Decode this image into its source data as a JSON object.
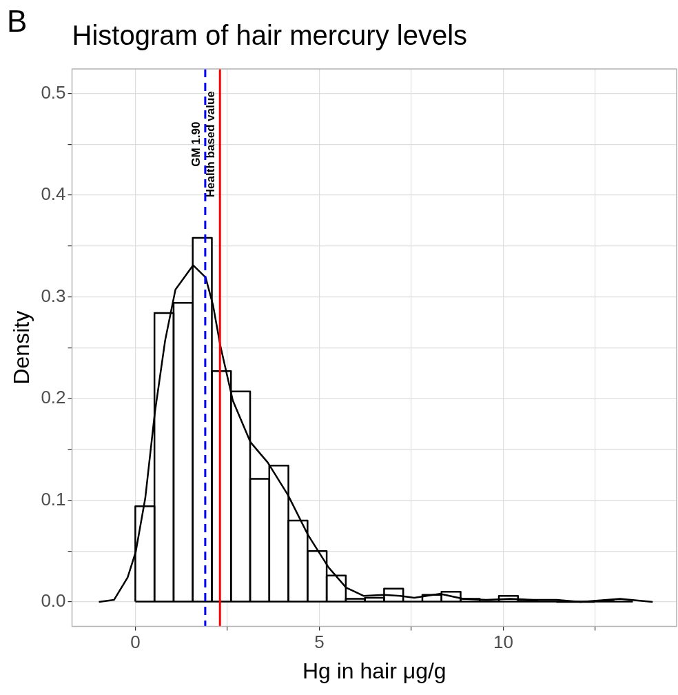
{
  "chart_data": {
    "type": "histogram",
    "title": "Histogram of hair mercury levels",
    "xlabel": "Hg in hair μg/g",
    "ylabel": "Density",
    "annotations": [
      "B"
    ],
    "bins": [
      0,
      0.52,
      1.04,
      1.56,
      2.08,
      2.6,
      3.12,
      3.64,
      4.16,
      4.68,
      5.2,
      5.72,
      6.24,
      6.76,
      7.28,
      7.8,
      8.32,
      8.84,
      9.36,
      9.88,
      10.4,
      10.92,
      11.44,
      11.96,
      12.48,
      13.0,
      13.52
    ],
    "color": "#ffffff",
    "values": [
      0.094,
      0.284,
      0.294,
      0.358,
      0.227,
      0.207,
      0.121,
      0.134,
      0.08,
      0.05,
      0.026,
      0.003,
      0.004,
      0.013,
      null,
      0.007,
      0.01,
      0.003,
      null,
      0.006,
      0.001,
      null,
      0,
      0,
      0.001,
      null
    ],
    "series": [
      {
        "type": "line",
        "color": "#000000",
        "x": [
          -0.99,
          -0.58,
          -0.21,
          0.01,
          0.27,
          0.53,
          0.81,
          1.09,
          1.57,
          1.91,
          2.11,
          2.31,
          2.65,
          3.13,
          3.6,
          4.15,
          4.69,
          5.25,
          5.73,
          6.2,
          6.75,
          7.2,
          7.58,
          8.28,
          8.91,
          9.54,
          10.19,
          10.82,
          11.45,
          12.1,
          13.17,
          14.06
        ],
        "values": [
          0,
          0.002,
          0.024,
          0.049,
          0.102,
          0.186,
          0.257,
          0.307,
          0.331,
          0.319,
          0.292,
          0.252,
          0.198,
          0.157,
          0.137,
          0.105,
          0.066,
          0.034,
          0.014,
          0.006,
          0.007,
          0.006,
          0.004,
          0.008,
          0.003,
          0.002,
          0.003,
          0.002,
          0.002,
          0,
          0.003,
          0
        ]
      }
    ],
    "ref_lines": [
      {
        "axis": "x",
        "value": 1.9,
        "label": "GM 1.90",
        "color": "#0000ff",
        "line_style": "dashed"
      },
      {
        "axis": "x",
        "value": 2.3,
        "label": "Health based value",
        "color": "#ff0000",
        "line_style": "solid"
      }
    ],
    "xlim": [
      -1.72,
      14.71
    ],
    "xticks": [
      0,
      {
        "value": 2.5,
        "label": null
      },
      5,
      {
        "value": 7.5,
        "label": null
      },
      10,
      {
        "value": 12.5,
        "label": null
      }
    ],
    "ylim": [
      -0.024,
      0.524
    ],
    "yticks": [
      {
        "value": 0,
        "label": "0.0"
      },
      {
        "value": 0.05,
        "label": null
      },
      {
        "value": 0.1,
        "label": "0.1"
      },
      {
        "value": 0.15,
        "label": null
      },
      {
        "value": 0.2,
        "label": "0.2"
      },
      {
        "value": 0.25,
        "label": null
      },
      {
        "value": 0.3,
        "label": "0.3"
      },
      {
        "value": 0.35,
        "label": null
      },
      {
        "value": 0.4,
        "label": "0.4"
      },
      {
        "value": 0.45,
        "label": null
      },
      {
        "value": 0.5,
        "label": "0.5"
      }
    ],
    "grid": true,
    "legend": false
  }
}
